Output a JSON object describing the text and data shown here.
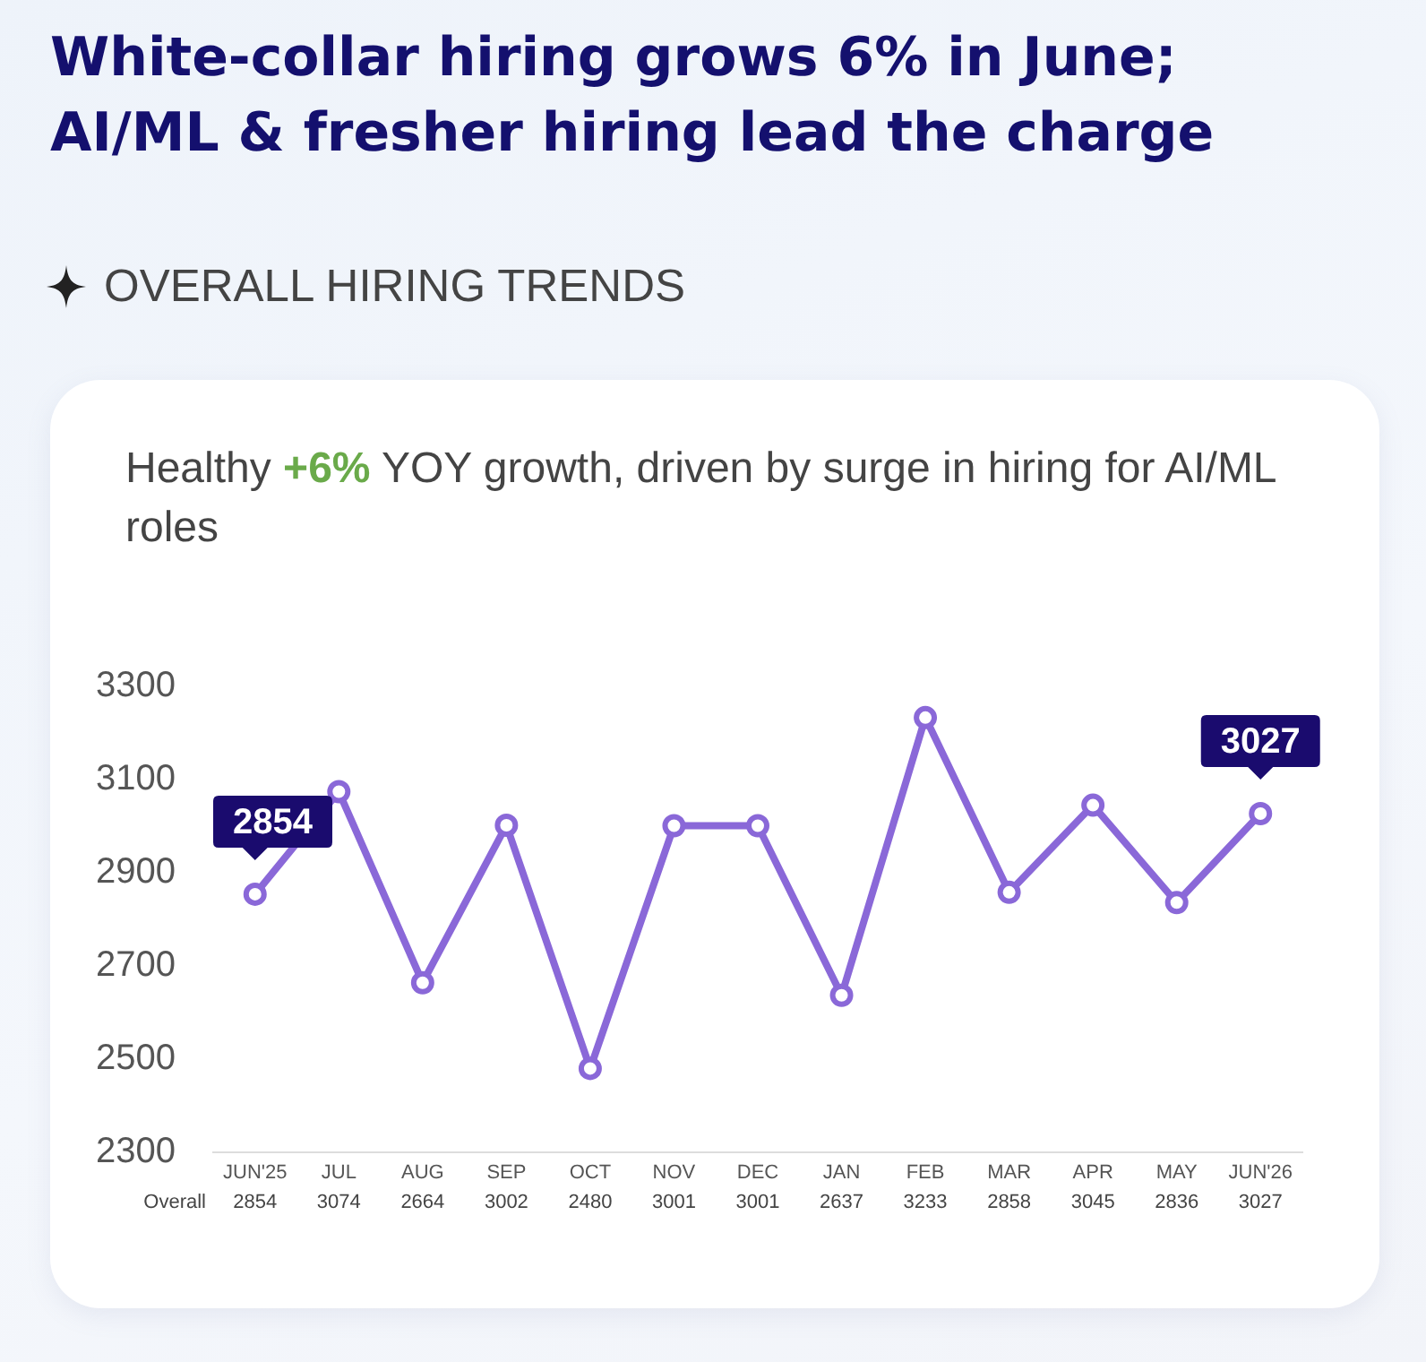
{
  "chart_data": {
    "type": "line",
    "title": "White-collar hiring grows 6% in June; AI/ML & fresher hiring lead the charge",
    "subtitle": "OVERALL HIRING TRENDS",
    "annotations": [
      "Healthy +6% YOY growth, driven by surge in hiring for AI/ML roles",
      {
        "text": "2854",
        "x": "JUN'25",
        "y": 2854
      },
      {
        "text": "3027",
        "x": "JUN'26",
        "y": 3027
      }
    ],
    "categories": [
      "JUN'25",
      "JUL",
      "AUG",
      "SEP",
      "OCT",
      "NOV",
      "DEC",
      "JAN",
      "FEB",
      "MAR",
      "APR",
      "MAY",
      "JUN'26"
    ],
    "series": [
      {
        "name": "Overall",
        "color": "#8a68d8",
        "values": [
          2854,
          3074,
          2664,
          3002,
          2480,
          3001,
          3001,
          2637,
          3233,
          2858,
          3045,
          2836,
          3027
        ]
      }
    ],
    "ylim": [
      2300,
      3300
    ],
    "yticks": [
      2300,
      2500,
      2700,
      2900,
      3100,
      3300
    ],
    "grid": false,
    "legend": false,
    "marker": "circle",
    "line_style": "solid",
    "data_labels": true
  }
}
